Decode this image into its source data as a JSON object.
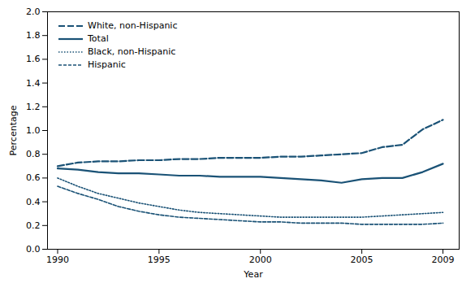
{
  "chart_data": {
    "type": "line",
    "x": [
      1990,
      1991,
      1992,
      1993,
      1994,
      1995,
      1996,
      1997,
      1998,
      1999,
      2000,
      2001,
      2002,
      2003,
      2004,
      2005,
      2006,
      2007,
      2008,
      2009
    ],
    "series": [
      {
        "name": "White, non-Hispanic",
        "color": "#1a5276",
        "line_style": "longdash",
        "values": [
          0.7,
          0.73,
          0.74,
          0.74,
          0.75,
          0.75,
          0.76,
          0.76,
          0.77,
          0.77,
          0.77,
          0.78,
          0.78,
          0.79,
          0.8,
          0.81,
          0.86,
          0.88,
          1.01,
          1.09
        ]
      },
      {
        "name": "Total",
        "color": "#1a5276",
        "line_style": "solid",
        "values": [
          0.68,
          0.67,
          0.65,
          0.64,
          0.64,
          0.63,
          0.62,
          0.62,
          0.61,
          0.61,
          0.61,
          0.6,
          0.59,
          0.58,
          0.56,
          0.59,
          0.6,
          0.6,
          0.65,
          0.72
        ]
      },
      {
        "name": "Black, non-Hispanic",
        "color": "#1a5276",
        "line_style": "dotted",
        "values": [
          0.6,
          0.53,
          0.47,
          0.43,
          0.39,
          0.36,
          0.33,
          0.31,
          0.3,
          0.29,
          0.28,
          0.27,
          0.27,
          0.27,
          0.27,
          0.27,
          0.28,
          0.29,
          0.3,
          0.31
        ]
      },
      {
        "name": "Hispanic",
        "color": "#1a5276",
        "line_style": "dashed",
        "values": [
          0.53,
          0.47,
          0.42,
          0.36,
          0.32,
          0.29,
          0.27,
          0.26,
          0.25,
          0.24,
          0.23,
          0.23,
          0.22,
          0.22,
          0.22,
          0.21,
          0.21,
          0.21,
          0.21,
          0.22
        ]
      }
    ],
    "x_label": "Year",
    "y_label": "Percentage",
    "xlim": [
      1989.5,
      2009.8
    ],
    "xticks": [
      1990,
      1995,
      2000,
      2005,
      2009
    ],
    "ylim": [
      0,
      2
    ],
    "yticks": [
      {
        "value": 0,
        "label": "0.0"
      },
      0.2,
      0.4,
      0.6,
      0.8,
      {
        "value": 1,
        "label": "1.0"
      },
      1.2,
      1.4,
      1.6,
      1.8,
      {
        "value": 2,
        "label": "2.0"
      }
    ],
    "legend": "upper left"
  }
}
